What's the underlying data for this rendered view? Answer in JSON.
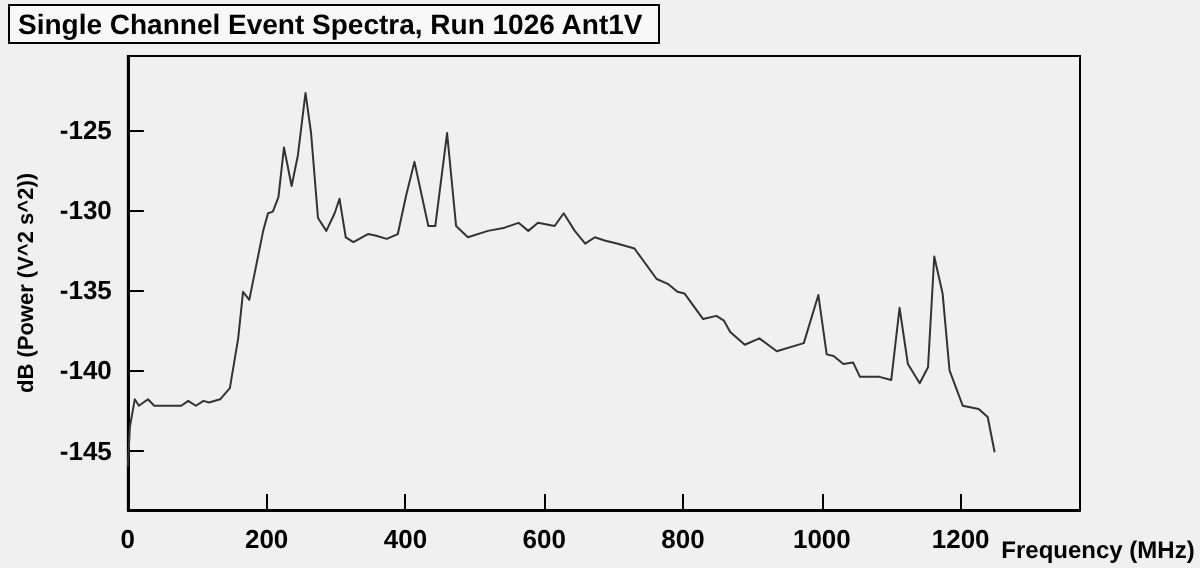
{
  "chart_data": {
    "type": "line",
    "title": "Single Channel Event Spectra, Run 1026 Ant1V",
    "xlabel": "Frequency (MHz)",
    "ylabel": "dB (Power (V^2 s^2))",
    "xlim": [
      0,
      1372
    ],
    "xticks": [
      0,
      200,
      400,
      600,
      800,
      1000,
      1200
    ],
    "ylim": [
      -148.7,
      -120.4
    ],
    "yticks": [
      -145,
      -140,
      -135,
      -130,
      -125
    ],
    "grid": false,
    "marker": "none",
    "line_style": "solid",
    "series": [
      {
        "color": "#333333",
        "x": [
          0,
          3,
          10,
          16,
          29,
          38,
          77,
          87,
          98,
          109,
          117,
          133,
          147,
          159,
          166,
          175,
          195,
          202,
          209,
          217,
          225,
          236,
          245,
          256,
          264,
          274,
          286,
          298,
          305,
          314,
          325,
          346,
          358,
          373,
          389,
          401,
          413,
          433,
          443,
          460,
          473,
          490,
          519,
          543,
          563,
          577,
          591,
          615,
          628,
          644,
          659,
          673,
          687,
          706,
          730,
          762,
          778,
          792,
          802,
          829,
          848,
          859,
          868,
          889,
          910,
          935,
          974,
          995,
          1007,
          1017,
          1031,
          1045,
          1055,
          1083,
          1100,
          1112,
          1124,
          1141,
          1153,
          1162,
          1174,
          1184,
          1203,
          1226,
          1239,
          1249
        ],
        "values": [
          -146,
          -143.5,
          -141.8,
          -142.2,
          -141.8,
          -142.2,
          -142.2,
          -141.9,
          -142.2,
          -141.9,
          -142.0,
          -141.8,
          -141.1,
          -138.0,
          -135.1,
          -135.6,
          -131.3,
          -130.2,
          -130.1,
          -129.2,
          -126.1,
          -128.5,
          -126.6,
          -122.7,
          -125.2,
          -130.5,
          -131.3,
          -130.2,
          -129.3,
          -131.7,
          -132.0,
          -131.5,
          -131.6,
          -131.8,
          -131.5,
          -129.1,
          -127.0,
          -131.0,
          -131.0,
          -125.2,
          -131.0,
          -131.7,
          -131.3,
          -131.1,
          -130.8,
          -131.3,
          -130.8,
          -131.0,
          -130.2,
          -131.3,
          -132.1,
          -131.7,
          -131.9,
          -132.1,
          -132.4,
          -134.3,
          -134.6,
          -135.1,
          -135.2,
          -136.8,
          -136.6,
          -136.9,
          -137.6,
          -138.4,
          -138.0,
          -138.8,
          -138.3,
          -135.3,
          -139.0,
          -139.1,
          -139.6,
          -139.5,
          -140.4,
          -140.4,
          -140.6,
          -136.1,
          -139.6,
          -140.8,
          -139.8,
          -132.9,
          -135.2,
          -140.0,
          -142.2,
          -142.4,
          -142.9,
          -145.1
        ]
      }
    ]
  }
}
